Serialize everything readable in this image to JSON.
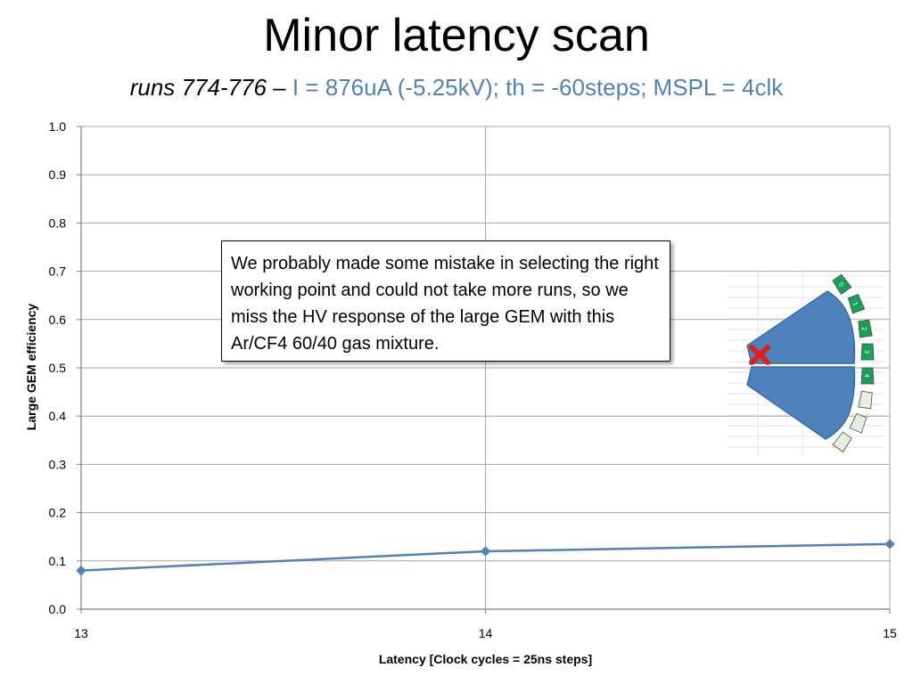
{
  "slide": {
    "title": "Minor latency scan",
    "subtitle_runs": "runs 774-776",
    "subtitle_separator": " – ",
    "subtitle_params": "I = 876uA (-5.25kV); th = -60steps; MSPL = 4clk",
    "subtitle_params_color": "#4f81bd"
  },
  "annotation": {
    "text": "We probably made some mistake in selecting the right working point and could not take more runs, so we miss the HV response of the large GEM with this Ar/CF4 60/40 gas mixture."
  },
  "chart_data": {
    "type": "line",
    "title": "",
    "xlabel": "Latency [Clock cycles = 25ns steps]",
    "ylabel": "Large GEM efficiency",
    "x_ticks": [
      13,
      14,
      15
    ],
    "y_ticks": [
      "0.0",
      "0.1",
      "0.2",
      "0.3",
      "0.4",
      "0.5",
      "0.6",
      "0.7",
      "0.8",
      "0.9",
      "1.0"
    ],
    "xlim": [
      13,
      15
    ],
    "ylim": [
      0,
      1
    ],
    "grid": true,
    "series": [
      {
        "x": [
          13,
          14,
          15
        ],
        "values": [
          0.08,
          0.12,
          0.135
        ],
        "color": "#4f81bd",
        "marker": "diamond"
      }
    ]
  },
  "detector_diagram": {
    "fill_color": "#4f81bd",
    "marker_color": "#e02020",
    "segment_colors": [
      "#1a9e5a",
      "#e6eee0"
    ],
    "segment_labels": [
      "0",
      "1",
      "2",
      "3",
      "4"
    ]
  }
}
